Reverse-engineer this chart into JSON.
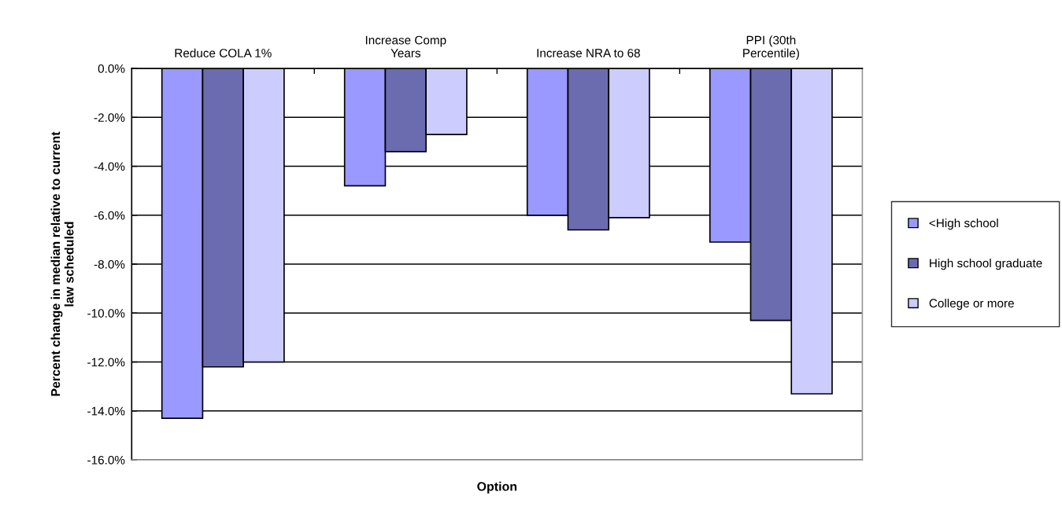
{
  "chart_data": {
    "type": "bar",
    "xlabel": "Option",
    "ylabel": "Percent change in median relative to current\nlaw scheduled",
    "categories": [
      "Reduce COLA 1%",
      "Increase Comp\nYears",
      "Increase NRA to 68",
      "PPI (30th\nPercentile)"
    ],
    "series": [
      {
        "name": "<High school",
        "color": "#9999ff",
        "values": [
          -14.3,
          -4.8,
          -6.0,
          -7.1
        ]
      },
      {
        "name": "High school graduate",
        "color": "#6b6bb0",
        "values": [
          -12.2,
          -3.4,
          -6.6,
          -10.3
        ]
      },
      {
        "name": "College or more",
        "color": "#ccccff",
        "values": [
          -12.0,
          -2.7,
          -6.1,
          -13.3
        ]
      }
    ],
    "ylim": [
      -16,
      0
    ],
    "yticks": [
      {
        "value": 0,
        "label": "0.0%"
      },
      {
        "value": -2,
        "label": "-2.0%"
      },
      {
        "value": -4,
        "label": "-4.0%"
      },
      {
        "value": -6,
        "label": "-6.0%"
      },
      {
        "value": -8,
        "label": "-8.0%"
      },
      {
        "value": -10,
        "label": "-10.0%"
      },
      {
        "value": -12,
        "label": "-12.0%"
      },
      {
        "value": -14,
        "label": "-14.0%"
      },
      {
        "value": -16,
        "label": "-16.0%"
      }
    ],
    "grid": "y",
    "legend": "right"
  }
}
